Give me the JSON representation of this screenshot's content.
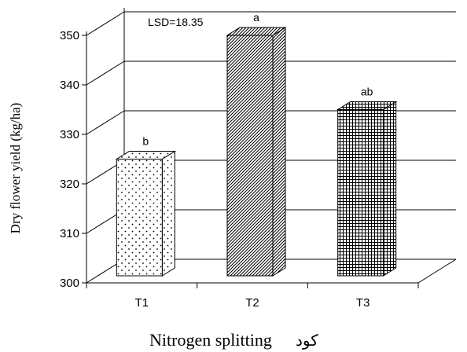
{
  "chart_data": {
    "type": "bar",
    "categories": [
      "T1",
      "T2",
      "T3"
    ],
    "values": [
      325,
      350,
      335
    ],
    "significance_letters": [
      "b",
      "a",
      "ab"
    ],
    "patterns": [
      "dots",
      "diagonal-hatch",
      "grid-hatch"
    ],
    "annotation": "LSD=18.35",
    "xlabel": "Nitrogen splitting",
    "xlabel_extra": "كود",
    "ylabel": "Dry flower yield (kg/ha)",
    "ylim": [
      300,
      350
    ],
    "yticks": [
      300,
      310,
      320,
      330,
      340,
      350
    ],
    "grid": true,
    "style": "3d-column",
    "colors": {
      "bar_fill": "#ffffff",
      "pattern": "#000000",
      "axis": "#000000"
    }
  }
}
